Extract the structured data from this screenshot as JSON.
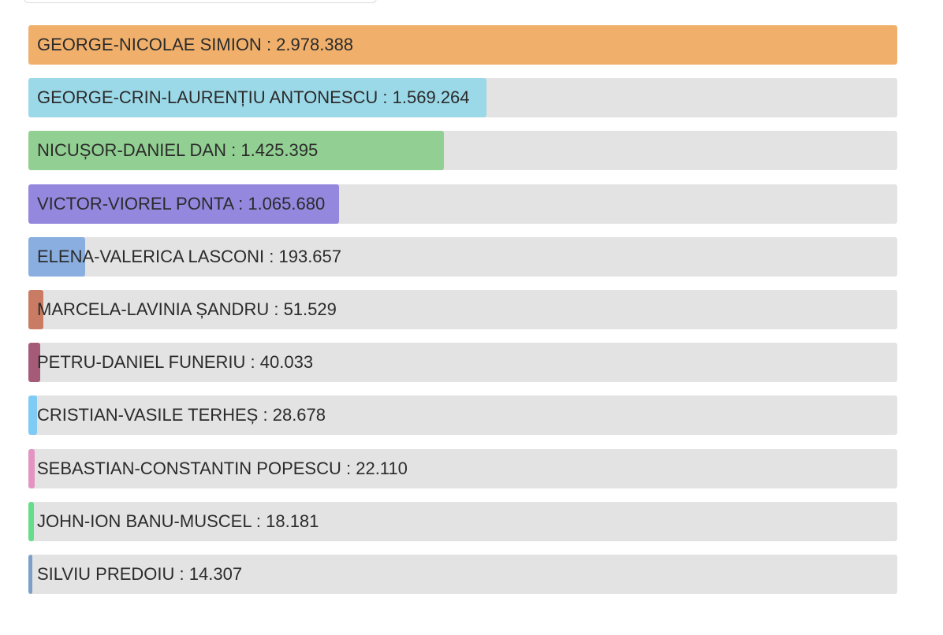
{
  "chart_data": {
    "type": "bar",
    "orientation": "horizontal",
    "categories": [
      "GEORGE-NICOLAE SIMION",
      "GEORGE-CRIN-LAURENȚIU ANTONESCU",
      "NICUȘOR-DANIEL DAN",
      "VICTOR-VIOREL PONTA",
      "ELENA-VALERICA LASCONI",
      "MARCELA-LAVINIA ȘANDRU",
      "PETRU-DANIEL FUNERIU",
      "CRISTIAN-VASILE TERHEȘ",
      "SEBASTIAN-CONSTANTIN POPESCU",
      "JOHN-ION BANU-MUSCEL",
      "SILVIU PREDOIU"
    ],
    "values": [
      2978388,
      1569264,
      1425395,
      1065680,
      193657,
      51529,
      40033,
      28678,
      22110,
      18181,
      14307
    ],
    "value_labels": [
      "2.978.388",
      "1.569.264",
      "1.425.395",
      "1.065.680",
      "193.657",
      "51.529",
      "40.033",
      "28.678",
      "22.110",
      "18.181",
      "14.307"
    ],
    "label_separator": " : ",
    "colors": [
      "#f0b06c",
      "#9cd9e8",
      "#92cf92",
      "#9487de",
      "#8aaee0",
      "#c97b63",
      "#a55a78",
      "#7ecbf5",
      "#e394c2",
      "#66dd8a",
      "#7d9ec8"
    ],
    "xlim": [
      0,
      2978388
    ]
  }
}
